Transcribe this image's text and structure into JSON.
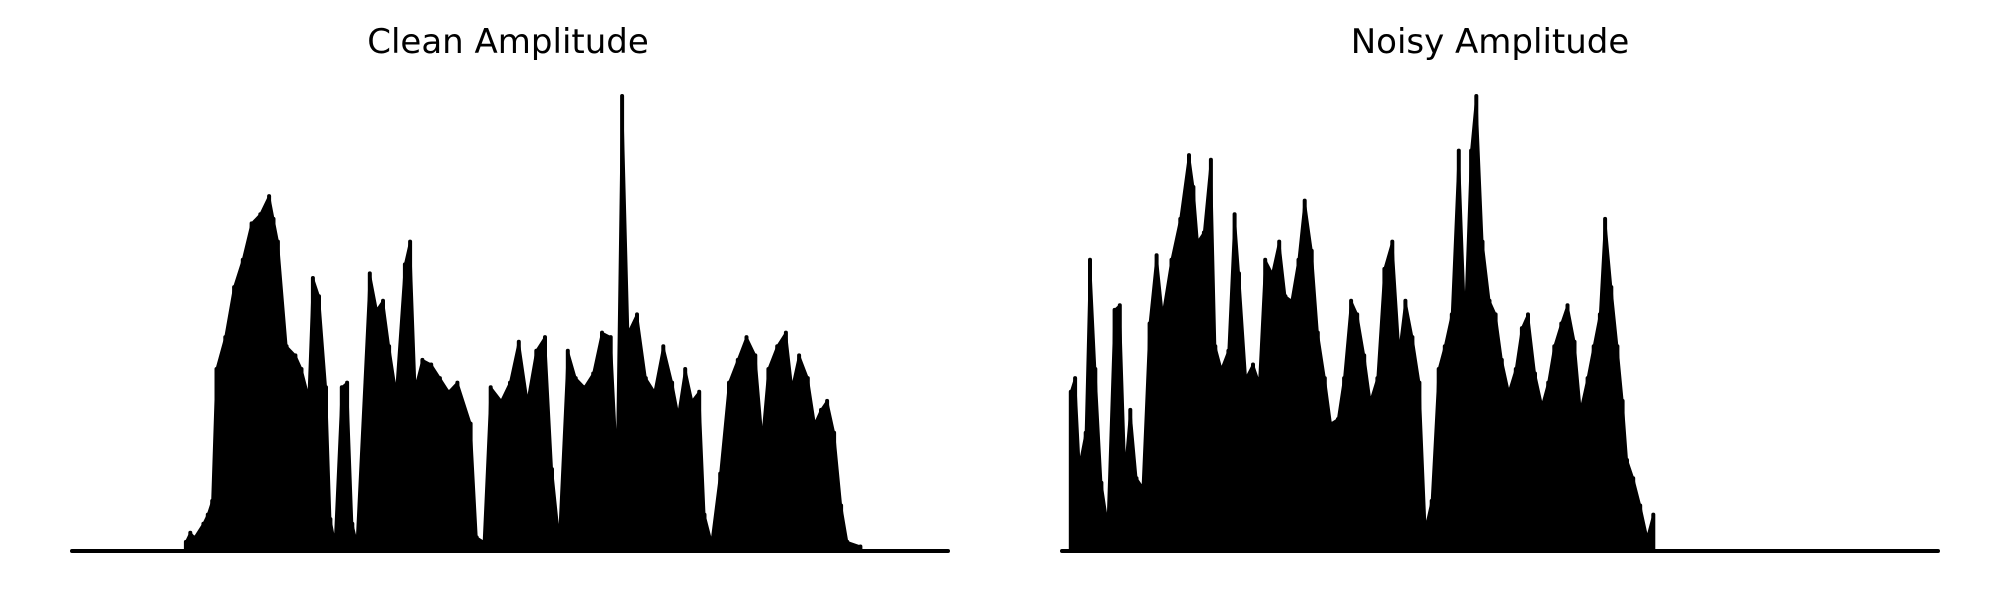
{
  "colors": {
    "background": "#ffffff",
    "line": "#000000"
  },
  "chart_data": [
    {
      "type": "area",
      "title": "Clean Amplitude",
      "xlabel": "",
      "ylabel": "",
      "axes_visible": false,
      "grid": false,
      "ylim": [
        0,
        1
      ],
      "peaks": [
        {
          "x": 0.13,
          "y": 0.02
        },
        {
          "x": 0.135,
          "y": 0.04
        },
        {
          "x": 0.14,
          "y": 0.03
        },
        {
          "x": 0.15,
          "y": 0.06
        },
        {
          "x": 0.155,
          "y": 0.08
        },
        {
          "x": 0.16,
          "y": 0.11
        },
        {
          "x": 0.165,
          "y": 0.4
        },
        {
          "x": 0.175,
          "y": 0.47
        },
        {
          "x": 0.185,
          "y": 0.58
        },
        {
          "x": 0.195,
          "y": 0.64
        },
        {
          "x": 0.205,
          "y": 0.72
        },
        {
          "x": 0.215,
          "y": 0.74
        },
        {
          "x": 0.225,
          "y": 0.78
        },
        {
          "x": 0.23,
          "y": 0.73
        },
        {
          "x": 0.235,
          "y": 0.68
        },
        {
          "x": 0.245,
          "y": 0.45
        },
        {
          "x": 0.255,
          "y": 0.43
        },
        {
          "x": 0.262,
          "y": 0.4
        },
        {
          "x": 0.27,
          "y": 0.34
        },
        {
          "x": 0.275,
          "y": 0.6
        },
        {
          "x": 0.282,
          "y": 0.56
        },
        {
          "x": 0.29,
          "y": 0.36
        },
        {
          "x": 0.295,
          "y": 0.07
        },
        {
          "x": 0.3,
          "y": 0.02
        },
        {
          "x": 0.308,
          "y": 0.36
        },
        {
          "x": 0.314,
          "y": 0.37
        },
        {
          "x": 0.32,
          "y": 0.06
        },
        {
          "x": 0.325,
          "y": 0.02
        },
        {
          "x": 0.34,
          "y": 0.61
        },
        {
          "x": 0.348,
          "y": 0.53
        },
        {
          "x": 0.355,
          "y": 0.55
        },
        {
          "x": 0.362,
          "y": 0.45
        },
        {
          "x": 0.37,
          "y": 0.35
        },
        {
          "x": 0.38,
          "y": 0.63
        },
        {
          "x": 0.386,
          "y": 0.68
        },
        {
          "x": 0.392,
          "y": 0.36
        },
        {
          "x": 0.4,
          "y": 0.42
        },
        {
          "x": 0.41,
          "y": 0.41
        },
        {
          "x": 0.42,
          "y": 0.38
        },
        {
          "x": 0.43,
          "y": 0.35
        },
        {
          "x": 0.44,
          "y": 0.37
        },
        {
          "x": 0.455,
          "y": 0.28
        },
        {
          "x": 0.462,
          "y": 0.03
        },
        {
          "x": 0.47,
          "y": 0.02
        },
        {
          "x": 0.478,
          "y": 0.36
        },
        {
          "x": 0.49,
          "y": 0.33
        },
        {
          "x": 0.5,
          "y": 0.37
        },
        {
          "x": 0.51,
          "y": 0.46
        },
        {
          "x": 0.52,
          "y": 0.33
        },
        {
          "x": 0.53,
          "y": 0.44
        },
        {
          "x": 0.54,
          "y": 0.47
        },
        {
          "x": 0.548,
          "y": 0.18
        },
        {
          "x": 0.556,
          "y": 0.03
        },
        {
          "x": 0.566,
          "y": 0.44
        },
        {
          "x": 0.575,
          "y": 0.38
        },
        {
          "x": 0.585,
          "y": 0.36
        },
        {
          "x": 0.595,
          "y": 0.39
        },
        {
          "x": 0.605,
          "y": 0.48
        },
        {
          "x": 0.615,
          "y": 0.47
        },
        {
          "x": 0.622,
          "y": 0.2
        },
        {
          "x": 0.628,
          "y": 1.0
        },
        {
          "x": 0.635,
          "y": 0.48
        },
        {
          "x": 0.645,
          "y": 0.52
        },
        {
          "x": 0.655,
          "y": 0.38
        },
        {
          "x": 0.665,
          "y": 0.35
        },
        {
          "x": 0.675,
          "y": 0.45
        },
        {
          "x": 0.685,
          "y": 0.37
        },
        {
          "x": 0.692,
          "y": 0.3
        },
        {
          "x": 0.7,
          "y": 0.4
        },
        {
          "x": 0.708,
          "y": 0.33
        },
        {
          "x": 0.716,
          "y": 0.35
        },
        {
          "x": 0.722,
          "y": 0.08
        },
        {
          "x": 0.73,
          "y": 0.02
        },
        {
          "x": 0.74,
          "y": 0.17
        },
        {
          "x": 0.75,
          "y": 0.37
        },
        {
          "x": 0.76,
          "y": 0.42
        },
        {
          "x": 0.77,
          "y": 0.47
        },
        {
          "x": 0.78,
          "y": 0.43
        },
        {
          "x": 0.788,
          "y": 0.25
        },
        {
          "x": 0.795,
          "y": 0.4
        },
        {
          "x": 0.805,
          "y": 0.45
        },
        {
          "x": 0.815,
          "y": 0.48
        },
        {
          "x": 0.822,
          "y": 0.36
        },
        {
          "x": 0.83,
          "y": 0.43
        },
        {
          "x": 0.84,
          "y": 0.38
        },
        {
          "x": 0.848,
          "y": 0.28
        },
        {
          "x": 0.855,
          "y": 0.31
        },
        {
          "x": 0.862,
          "y": 0.33
        },
        {
          "x": 0.87,
          "y": 0.26
        },
        {
          "x": 0.878,
          "y": 0.1
        },
        {
          "x": 0.885,
          "y": 0.02
        },
        {
          "x": 0.9,
          "y": 0.01
        }
      ]
    },
    {
      "type": "area",
      "title": "Noisy Amplitude",
      "xlabel": "",
      "ylabel": "",
      "axes_visible": false,
      "grid": false,
      "ylim": [
        0,
        1
      ],
      "peaks": [
        {
          "x": 0.01,
          "y": 0.35
        },
        {
          "x": 0.015,
          "y": 0.38
        },
        {
          "x": 0.02,
          "y": 0.19
        },
        {
          "x": 0.027,
          "y": 0.26
        },
        {
          "x": 0.032,
          "y": 0.64
        },
        {
          "x": 0.038,
          "y": 0.4
        },
        {
          "x": 0.045,
          "y": 0.15
        },
        {
          "x": 0.052,
          "y": 0.06
        },
        {
          "x": 0.06,
          "y": 0.53
        },
        {
          "x": 0.066,
          "y": 0.54
        },
        {
          "x": 0.072,
          "y": 0.18
        },
        {
          "x": 0.078,
          "y": 0.31
        },
        {
          "x": 0.085,
          "y": 0.16
        },
        {
          "x": 0.092,
          "y": 0.14
        },
        {
          "x": 0.1,
          "y": 0.5
        },
        {
          "x": 0.108,
          "y": 0.65
        },
        {
          "x": 0.115,
          "y": 0.52
        },
        {
          "x": 0.125,
          "y": 0.64
        },
        {
          "x": 0.135,
          "y": 0.73
        },
        {
          "x": 0.145,
          "y": 0.87
        },
        {
          "x": 0.15,
          "y": 0.8
        },
        {
          "x": 0.155,
          "y": 0.68
        },
        {
          "x": 0.162,
          "y": 0.7
        },
        {
          "x": 0.17,
          "y": 0.86
        },
        {
          "x": 0.175,
          "y": 0.45
        },
        {
          "x": 0.182,
          "y": 0.4
        },
        {
          "x": 0.19,
          "y": 0.44
        },
        {
          "x": 0.197,
          "y": 0.74
        },
        {
          "x": 0.202,
          "y": 0.61
        },
        {
          "x": 0.21,
          "y": 0.38
        },
        {
          "x": 0.218,
          "y": 0.41
        },
        {
          "x": 0.225,
          "y": 0.37
        },
        {
          "x": 0.232,
          "y": 0.64
        },
        {
          "x": 0.24,
          "y": 0.61
        },
        {
          "x": 0.248,
          "y": 0.68
        },
        {
          "x": 0.255,
          "y": 0.56
        },
        {
          "x": 0.262,
          "y": 0.55
        },
        {
          "x": 0.27,
          "y": 0.64
        },
        {
          "x": 0.277,
          "y": 0.77
        },
        {
          "x": 0.285,
          "y": 0.66
        },
        {
          "x": 0.292,
          "y": 0.48
        },
        {
          "x": 0.3,
          "y": 0.38
        },
        {
          "x": 0.307,
          "y": 0.28
        },
        {
          "x": 0.315,
          "y": 0.29
        },
        {
          "x": 0.322,
          "y": 0.38
        },
        {
          "x": 0.33,
          "y": 0.55
        },
        {
          "x": 0.337,
          "y": 0.52
        },
        {
          "x": 0.345,
          "y": 0.43
        },
        {
          "x": 0.352,
          "y": 0.33
        },
        {
          "x": 0.36,
          "y": 0.38
        },
        {
          "x": 0.368,
          "y": 0.62
        },
        {
          "x": 0.377,
          "y": 0.68
        },
        {
          "x": 0.385,
          "y": 0.44
        },
        {
          "x": 0.392,
          "y": 0.55
        },
        {
          "x": 0.4,
          "y": 0.47
        },
        {
          "x": 0.408,
          "y": 0.37
        },
        {
          "x": 0.415,
          "y": 0.05
        },
        {
          "x": 0.422,
          "y": 0.11
        },
        {
          "x": 0.43,
          "y": 0.4
        },
        {
          "x": 0.437,
          "y": 0.45
        },
        {
          "x": 0.445,
          "y": 0.52
        },
        {
          "x": 0.453,
          "y": 0.88
        },
        {
          "x": 0.46,
          "y": 0.51
        },
        {
          "x": 0.467,
          "y": 0.88
        },
        {
          "x": 0.473,
          "y": 1.0
        },
        {
          "x": 0.48,
          "y": 0.68
        },
        {
          "x": 0.488,
          "y": 0.55
        },
        {
          "x": 0.495,
          "y": 0.52
        },
        {
          "x": 0.502,
          "y": 0.42
        },
        {
          "x": 0.51,
          "y": 0.35
        },
        {
          "x": 0.518,
          "y": 0.4
        },
        {
          "x": 0.525,
          "y": 0.49
        },
        {
          "x": 0.532,
          "y": 0.52
        },
        {
          "x": 0.54,
          "y": 0.39
        },
        {
          "x": 0.548,
          "y": 0.32
        },
        {
          "x": 0.555,
          "y": 0.37
        },
        {
          "x": 0.562,
          "y": 0.45
        },
        {
          "x": 0.57,
          "y": 0.5
        },
        {
          "x": 0.577,
          "y": 0.54
        },
        {
          "x": 0.585,
          "y": 0.46
        },
        {
          "x": 0.592,
          "y": 0.31
        },
        {
          "x": 0.6,
          "y": 0.38
        },
        {
          "x": 0.607,
          "y": 0.45
        },
        {
          "x": 0.614,
          "y": 0.52
        },
        {
          "x": 0.62,
          "y": 0.73
        },
        {
          "x": 0.627,
          "y": 0.58
        },
        {
          "x": 0.634,
          "y": 0.45
        },
        {
          "x": 0.64,
          "y": 0.33
        },
        {
          "x": 0.645,
          "y": 0.2
        },
        {
          "x": 0.652,
          "y": 0.16
        },
        {
          "x": 0.66,
          "y": 0.1
        },
        {
          "x": 0.668,
          "y": 0.03
        },
        {
          "x": 0.675,
          "y": 0.08
        }
      ]
    }
  ]
}
